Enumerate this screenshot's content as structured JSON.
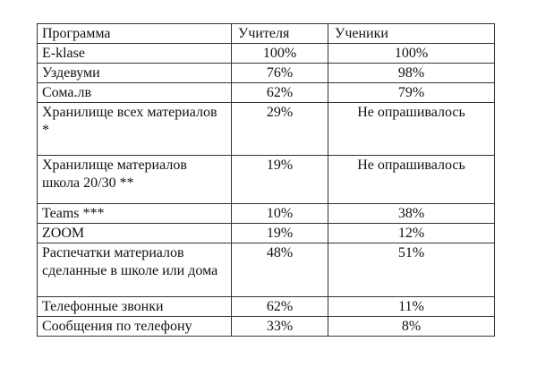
{
  "table": {
    "headers": [
      "Программа",
      "Учителя",
      "Ученики"
    ],
    "rows": [
      {
        "program": "E-klase",
        "teachers": "100%",
        "students": "100%"
      },
      {
        "program": "Уздевуми",
        "teachers": "76%",
        "students": "98%"
      },
      {
        "program": "Сома.лв",
        "teachers": "62%",
        "students": "79%"
      },
      {
        "program": "Хранилище всех материалов *",
        "teachers": "29%",
        "students": "Не опрашивалось"
      },
      {
        "program": "Хранилище материалов школа 20/30 **",
        "teachers": "19%",
        "students": "Не опрашивалось"
      },
      {
        "program": "Teams ***",
        "teachers": "10%",
        "students": "38%"
      },
      {
        "program": "ZOOM",
        "teachers": "19%",
        "students": "12%"
      },
      {
        "program": "Распечатки материалов сделанные в школе или дома",
        "teachers": "48%",
        "students": "51%"
      },
      {
        "program": "Телефонные звонки",
        "teachers": "62%",
        "students": "11%"
      },
      {
        "program": "Сообщения по телефону",
        "teachers": "33%",
        "students": "8%"
      }
    ]
  }
}
